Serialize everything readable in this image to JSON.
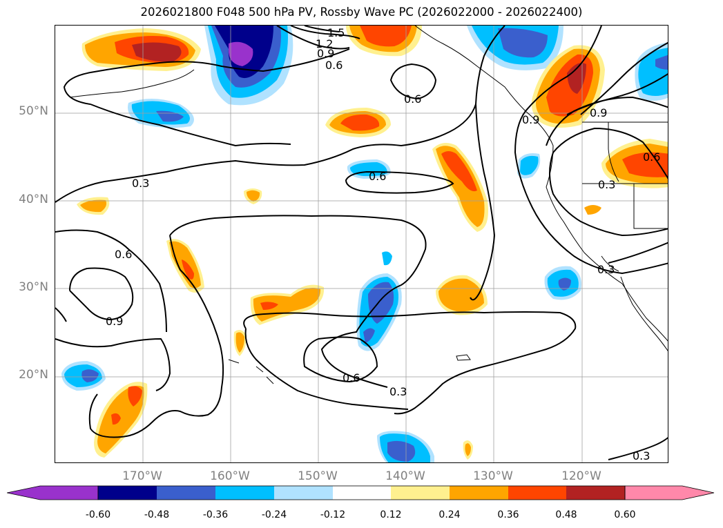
{
  "title": "2026021800 F048 500 hPa PV, Rossby Wave PC (2026022000 - 2026022400)",
  "lat_labels": [
    "50°N",
    "40°N",
    "30°N",
    "20°N"
  ],
  "lon_labels": [
    "170°W",
    "160°W",
    "150°W",
    "140°W",
    "130°W",
    "120°W"
  ],
  "contour_labels": [
    "1.5",
    "1.2",
    "0.9",
    "0.6",
    "0.6",
    "0.6",
    "0.9",
    "0.9",
    "0.6",
    "0.3",
    "0.3",
    "0.6",
    "0.9",
    "0.6",
    "0.3",
    "0.3",
    "0.3"
  ],
  "colorbar": {
    "tick_labels": [
      "-0.60",
      "-0.48",
      "-0.36",
      "-0.24",
      "-0.12",
      "0.12",
      "0.24",
      "0.36",
      "0.48",
      "0.60"
    ],
    "colors": [
      "#9932cc",
      "#00008b",
      "#3a5fcd",
      "#00bfff",
      "#b0e2ff",
      "#ffffff",
      "#fff08f",
      "#ffa500",
      "#ff4500",
      "#b22222",
      "#ff88aa"
    ]
  },
  "map": {
    "extent_lon": [
      -180,
      -110
    ],
    "extent_lat": [
      10,
      60
    ],
    "grid": true,
    "colors": {
      "neg_strong": "#00008b",
      "neg_mid": "#3a5fcd",
      "neg": "#00bfff",
      "neg_weak": "#b0e2ff",
      "pos_weak": "#fff08f",
      "pos": "#ffa500",
      "pos_mid": "#ff4500",
      "pos_strong": "#b22222",
      "purple": "#9932cc"
    }
  }
}
